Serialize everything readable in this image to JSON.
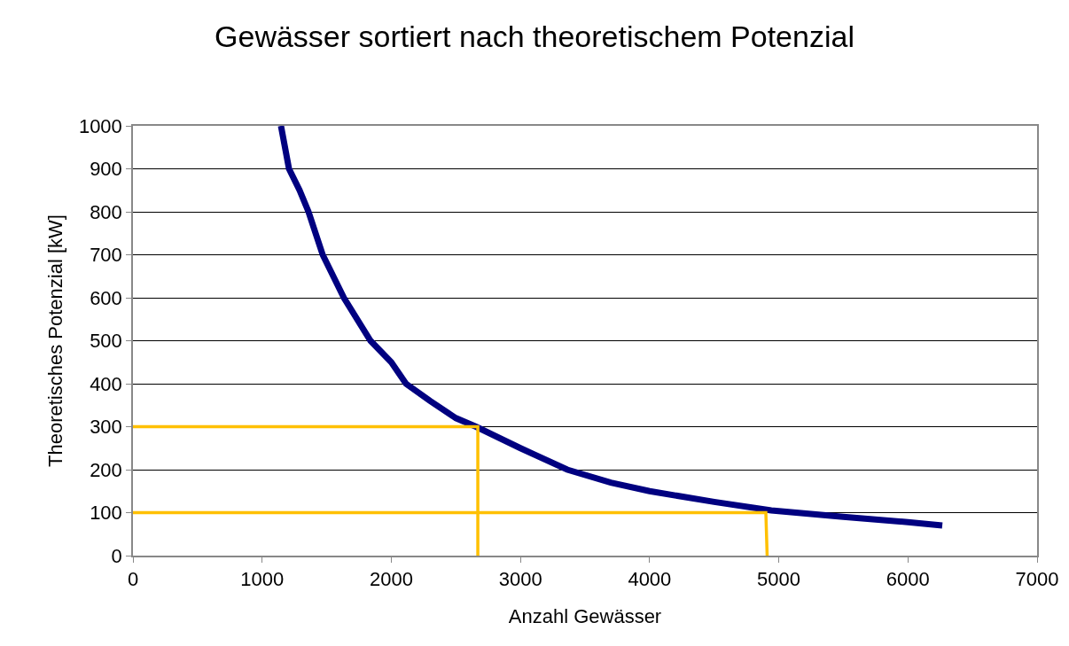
{
  "chart_data": {
    "type": "line",
    "title": "Gewässer sortiert nach theoretischem Potenzial",
    "xlabel": "Anzahl Gewässer",
    "ylabel": "Theoretisches Potenzial [kW]",
    "xlim": [
      0,
      7000
    ],
    "xticks": [
      0,
      1000,
      2000,
      3000,
      4000,
      5000,
      6000,
      7000
    ],
    "ylim": [
      0,
      1000
    ],
    "yticks": [
      0,
      100,
      200,
      300,
      400,
      500,
      600,
      700,
      800,
      900,
      1000
    ],
    "grid": "y",
    "marker": "none",
    "line_style": "solid",
    "series": [
      {
        "color": "#000080",
        "x": [
          1146,
          1208,
          1290,
          1359,
          1469,
          1633,
          1839,
          2000,
          2114,
          2300,
          2500,
          2656,
          3000,
          3363,
          3700,
          4000,
          4500,
          4942,
          5500,
          6000,
          6266
        ],
        "values": [
          1000,
          900,
          850,
          800,
          700,
          600,
          500,
          450,
          400,
          360,
          320,
          300,
          250,
          200,
          170,
          150,
          125,
          105,
          90,
          78,
          70
        ]
      },
      {
        "color": "#ffc000",
        "x": [
          0,
          2670,
          2670
        ],
        "values": [
          300,
          300,
          0
        ]
      },
      {
        "color": "#ffc000",
        "x": [
          0,
          4900,
          4910
        ],
        "values": [
          100,
          100,
          0
        ]
      }
    ]
  }
}
